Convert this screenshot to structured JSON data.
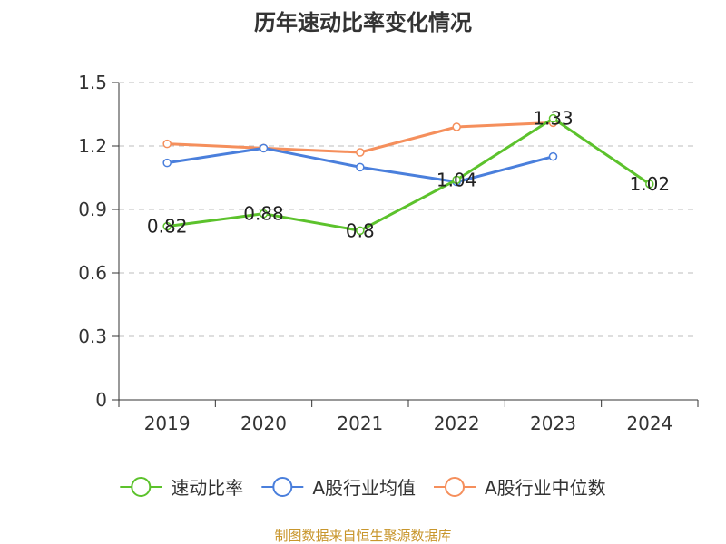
{
  "chart_data": {
    "type": "line",
    "title": "历年速动比率变化情况",
    "categories": [
      "2019",
      "2020",
      "2021",
      "2022",
      "2023",
      "2024"
    ],
    "y_ticks": [
      "0",
      "0.3",
      "0.6",
      "0.9",
      "1.2",
      "1.5"
    ],
    "ylim": [
      0,
      1.5
    ],
    "grid": true,
    "legend_position": "bottom",
    "series": [
      {
        "name": "速动比率",
        "color": "#5cc22c",
        "values": [
          0.82,
          0.88,
          0.8,
          1.04,
          1.33,
          1.02
        ],
        "labels": [
          "0.82",
          "0.88",
          "0.8",
          "1.04",
          "1.33",
          "1.02"
        ]
      },
      {
        "name": "A股行业均值",
        "color": "#4a7fdc",
        "values": [
          1.12,
          1.19,
          1.1,
          1.03,
          1.15,
          null
        ]
      },
      {
        "name": "A股行业中位数",
        "color": "#f58f5c",
        "values": [
          1.21,
          1.19,
          1.17,
          1.29,
          1.31,
          null
        ]
      }
    ],
    "source_note": "制图数据来自恒生聚源数据库",
    "source_color": "#c8962c"
  }
}
